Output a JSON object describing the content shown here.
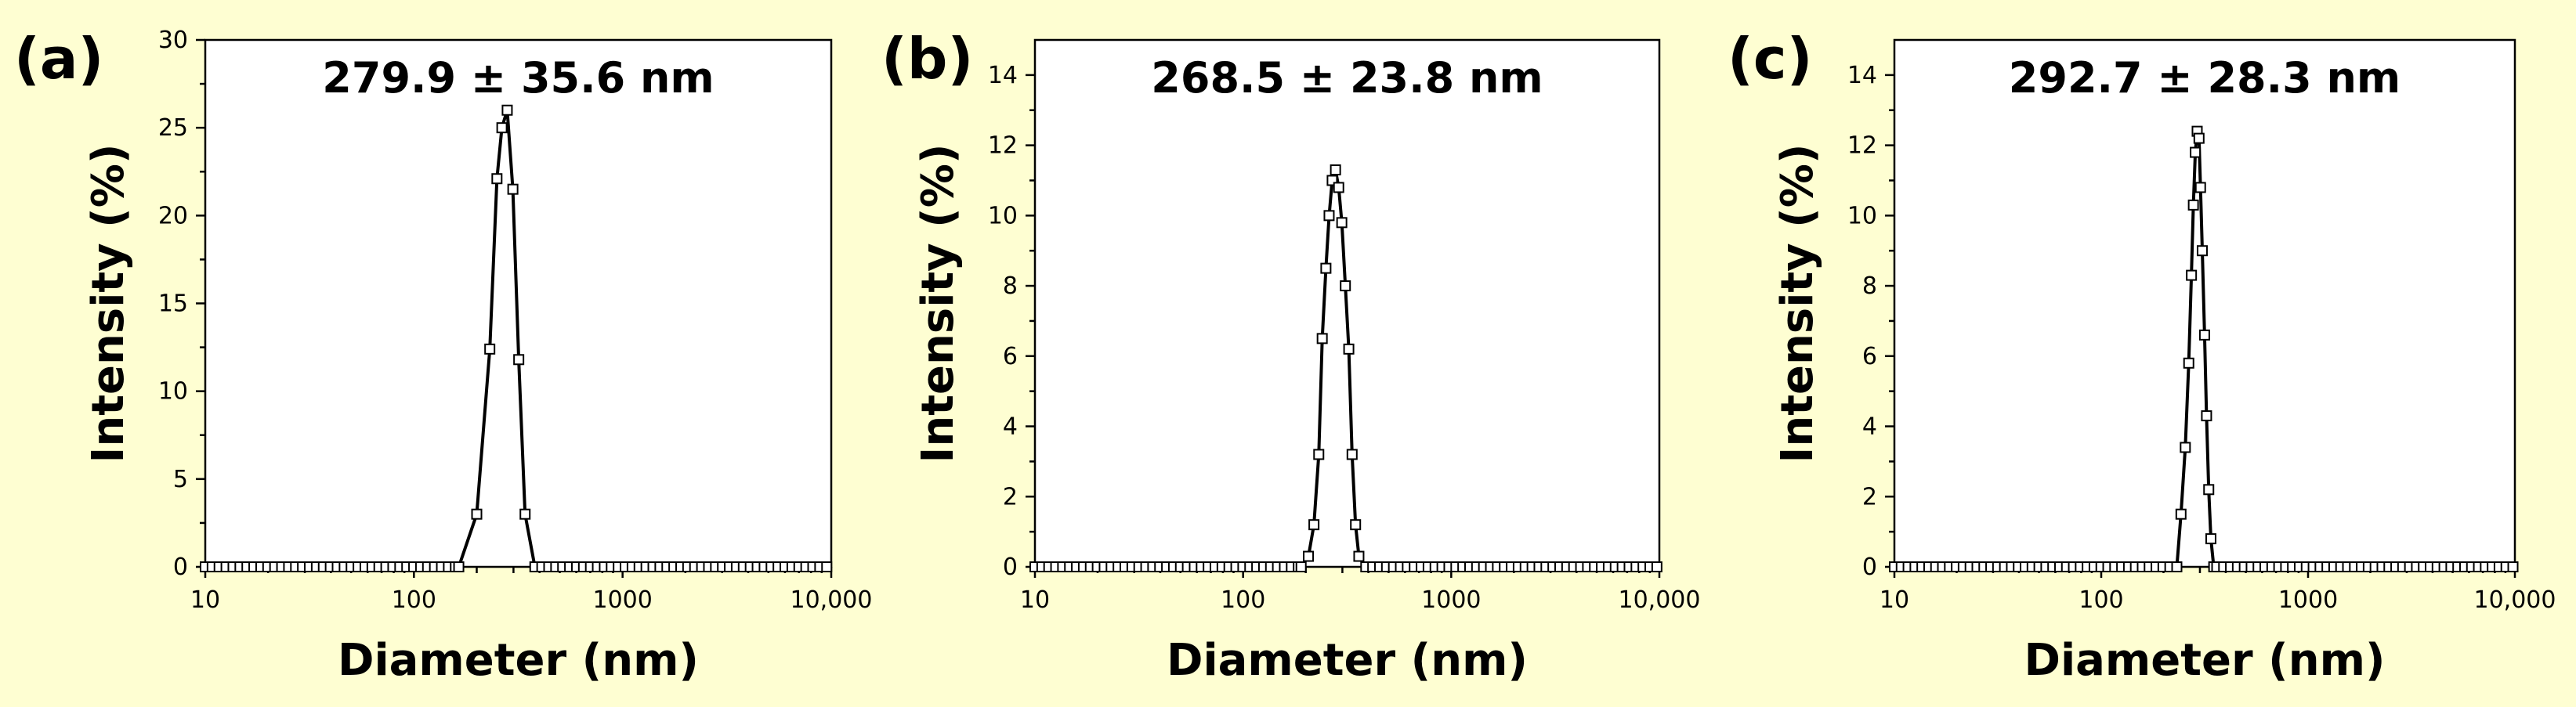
{
  "chart_data": [
    {
      "type": "line",
      "panel_label": "(a)",
      "title": "279.9 ± 35.6 nm",
      "xlabel": "Diameter (nm)",
      "ylabel": "Intensity (%)",
      "xscale": "log",
      "xlim": [
        10,
        10000
      ],
      "ylim": [
        0,
        30
      ],
      "xticks": [
        10,
        100,
        1000,
        10000
      ],
      "xtick_labels": [
        "10",
        "100",
        "1000",
        "10,000"
      ],
      "yticks": [
        0,
        5,
        10,
        15,
        20,
        25,
        30
      ],
      "ytick_labels": [
        "0",
        "5",
        "10",
        "15",
        "20",
        "25",
        "30"
      ],
      "peak": {
        "x": [
          164,
          200,
          231,
          250,
          264,
          280,
          298,
          318,
          341,
          380
        ],
        "y": [
          0,
          3.0,
          12.4,
          22.1,
          25.0,
          26.0,
          21.5,
          11.8,
          3.0,
          0
        ]
      }
    },
    {
      "type": "line",
      "panel_label": "(b)",
      "title": "268.5 ± 23.8 nm",
      "xlabel": "Diameter (nm)",
      "ylabel": "Intensity (%)",
      "xscale": "log",
      "xlim": [
        10,
        10000
      ],
      "ylim": [
        0,
        15
      ],
      "xticks": [
        10,
        100,
        1000,
        10000
      ],
      "xtick_labels": [
        "10",
        "100",
        "1000",
        "10,000"
      ],
      "yticks": [
        0,
        2,
        4,
        6,
        8,
        10,
        12,
        14
      ],
      "ytick_labels": [
        "0",
        "2",
        "4",
        "6",
        "8",
        "10",
        "12",
        "14"
      ],
      "peak": {
        "x": [
          190,
          206,
          219,
          231,
          240,
          250,
          259,
          268,
          278,
          288,
          298,
          310,
          322,
          334,
          347,
          360
        ],
        "y": [
          0,
          0.3,
          1.2,
          3.2,
          6.5,
          8.5,
          10.0,
          11.0,
          11.3,
          10.8,
          9.8,
          8.0,
          6.2,
          3.2,
          1.2,
          0.3
        ]
      }
    },
    {
      "type": "line",
      "panel_label": "(c)",
      "title": "292.7 ± 28.3 nm",
      "xlabel": "Diameter (nm)",
      "ylabel": "Intensity (%)",
      "xscale": "log",
      "xlim": [
        10,
        10000
      ],
      "ylim": [
        0,
        15
      ],
      "xticks": [
        10,
        100,
        1000,
        10000
      ],
      "xtick_labels": [
        "10",
        "100",
        "1000",
        "10,000"
      ],
      "yticks": [
        0,
        2,
        4,
        6,
        8,
        10,
        12,
        14
      ],
      "ytick_labels": [
        "0",
        "2",
        "4",
        "6",
        "8",
        "10",
        "12",
        "14"
      ],
      "peak": {
        "x": [
          232,
          243,
          255,
          265,
          273,
          279,
          285,
          291,
          297,
          302,
          308,
          316,
          323,
          331,
          339,
          350,
          362
        ],
        "y": [
          0,
          1.5,
          3.4,
          5.8,
          8.3,
          10.3,
          11.8,
          12.4,
          12.2,
          10.8,
          9.0,
          6.6,
          4.3,
          2.2,
          0.8,
          0,
          0
        ]
      }
    }
  ]
}
